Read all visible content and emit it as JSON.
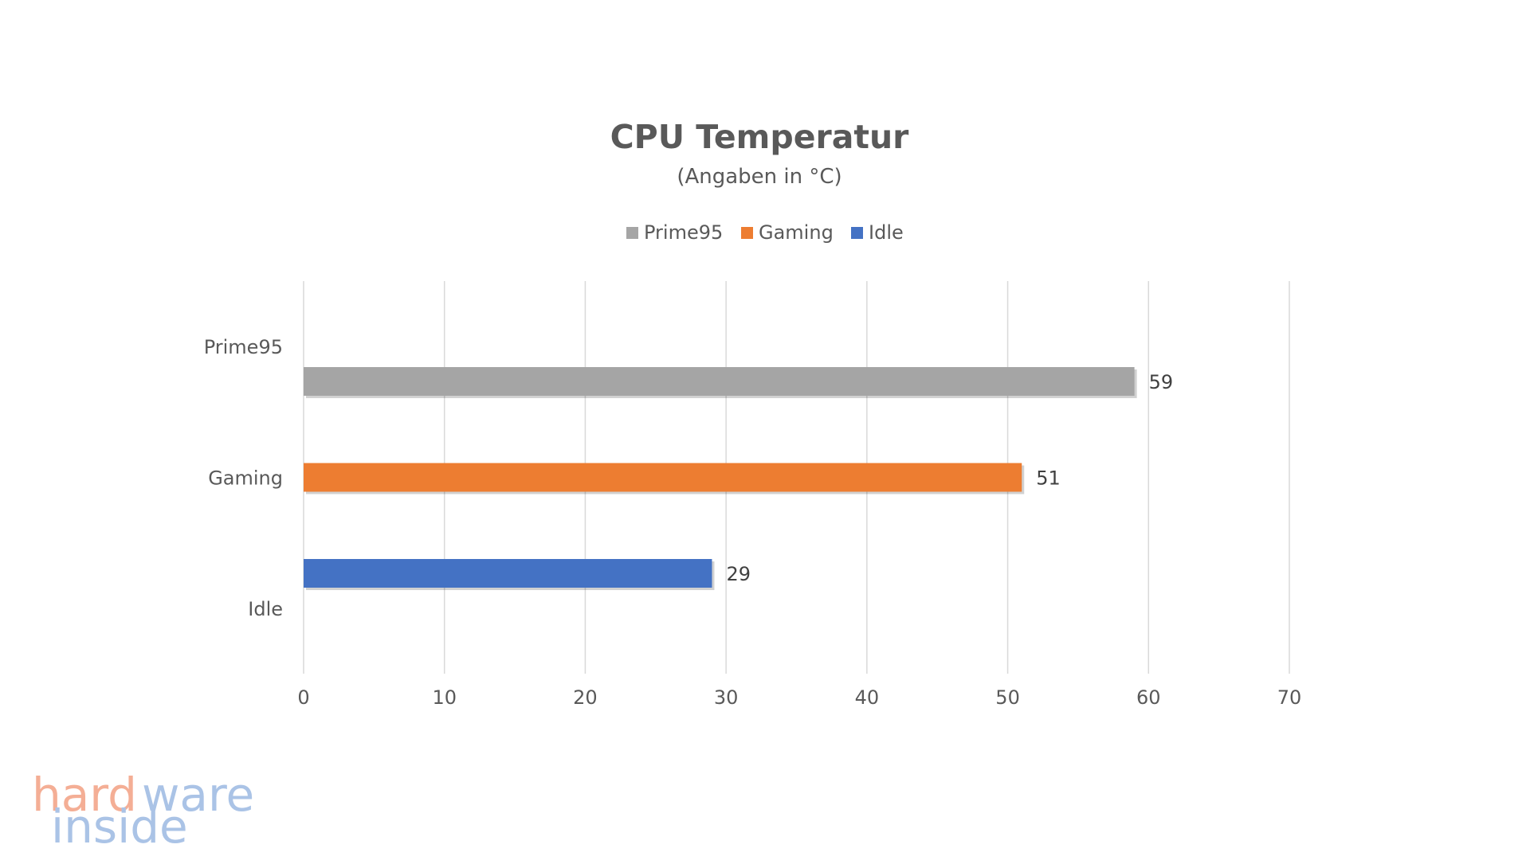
{
  "chart_data": {
    "type": "bar",
    "orientation": "horizontal",
    "title": "CPU Temperatur",
    "subtitle": "(Angaben in °C)",
    "categories": [
      "Prime95",
      "Gaming",
      "Idle"
    ],
    "series": [
      {
        "name": "Prime95",
        "values": [
          59,
          null,
          null
        ],
        "color": "#a5a5a5"
      },
      {
        "name": "Gaming",
        "values": [
          null,
          51,
          null
        ],
        "color": "#ed7d31"
      },
      {
        "name": "Idle",
        "values": [
          null,
          null,
          29
        ],
        "color": "#4472c4"
      }
    ],
    "xlim": [
      0,
      70
    ],
    "xticks": [
      0,
      10,
      20,
      30,
      40,
      50,
      60,
      70
    ],
    "grid": true,
    "legend_position": "top"
  },
  "watermark": {
    "line1_part1": "hard",
    "line1_part2": "ware",
    "line2": "inside"
  }
}
